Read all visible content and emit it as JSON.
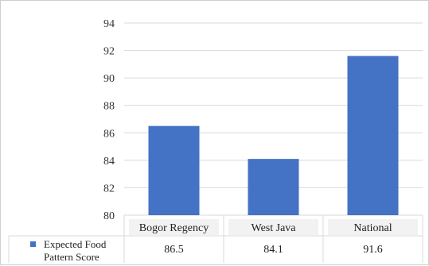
{
  "chart_data": {
    "type": "bar",
    "categories": [
      "Bogor Regency",
      "West Java",
      "National"
    ],
    "series": [
      {
        "name": "Expected Food Pattern Score",
        "values": [
          86.5,
          84.1,
          91.6
        ],
        "color": "#4472C4"
      }
    ],
    "value_labels": [
      "86.5",
      "84.1",
      "91.6"
    ],
    "ylim": [
      80,
      94
    ],
    "yticks": [
      80,
      82,
      84,
      86,
      88,
      90,
      92,
      94
    ],
    "grid": true,
    "legend": "data-table-left",
    "legend_lines": [
      "Expected Food",
      "Pattern Score"
    ],
    "title": "",
    "xlabel": "",
    "ylabel": ""
  }
}
